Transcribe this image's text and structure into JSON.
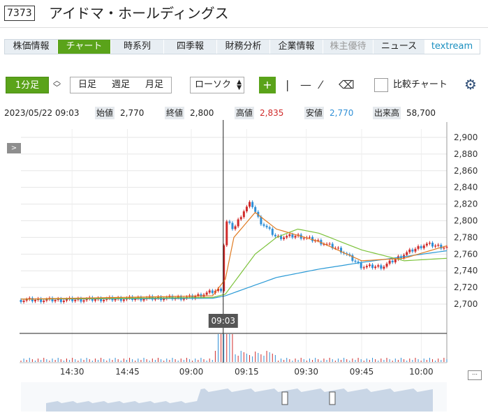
{
  "header": {
    "code": "7373",
    "company": "アイドマ・ホールディングス"
  },
  "tabs": [
    {
      "label": "株価情報",
      "state": "normal"
    },
    {
      "label": "チャート",
      "state": "active"
    },
    {
      "label": "時系列",
      "state": "normal"
    },
    {
      "label": "四季報",
      "state": "normal"
    },
    {
      "label": "財務分析",
      "state": "normal"
    },
    {
      "label": "企業情報",
      "state": "normal"
    },
    {
      "label": "株主優待",
      "state": "disabled"
    },
    {
      "label": "ニュース",
      "state": "normal"
    },
    {
      "label": "textream",
      "state": "ext"
    }
  ],
  "toolbar": {
    "interval": "1分足",
    "periods": [
      "日足",
      "週足",
      "月足"
    ],
    "chart_type": "ローソク",
    "compare_label": "比較チャート"
  },
  "info": {
    "datetime": "2023/05/22 09:03",
    "open_label": "始値",
    "open": "2,770",
    "close_label": "終値",
    "close": "2,800",
    "high_label": "高値",
    "high": "2,835",
    "low_label": "安値",
    "low": "2,770",
    "volume_label": "出来高",
    "volume": "58,700"
  },
  "colors": {
    "up": "#d02b2b",
    "down": "#2f8fd6",
    "ma_short": "#e07b22",
    "ma_mid": "#7cc23a",
    "ma_long": "#2b9ad6",
    "accent": "#5aa31a"
  },
  "chart_data": {
    "type": "line",
    "x_ticks": [
      "14:30",
      "14:45",
      "09:00",
      "09:15",
      "09:30",
      "09:45",
      "10:00"
    ],
    "crosshair_label": "09:03",
    "ylim": [
      2690,
      2910
    ],
    "y_ticks": [
      "2,900",
      "2,880",
      "2,860",
      "2,840",
      "2,820",
      "2,800",
      "2,780",
      "2,760",
      "2,740",
      "2,720",
      "2,700"
    ],
    "price_series": {
      "description": "approximate close values by position (0 = start of axis, 1 = end)",
      "t": [
        0.0,
        0.1,
        0.2,
        0.3,
        0.4,
        0.45,
        0.47,
        0.48,
        0.5,
        0.52,
        0.54,
        0.56,
        0.58,
        0.6,
        0.65,
        0.7,
        0.75,
        0.8,
        0.85,
        0.9,
        0.95,
        1.0
      ],
      "close": [
        2705,
        2705,
        2706,
        2707,
        2708,
        2715,
        2718,
        2800,
        2790,
        2810,
        2822,
        2800,
        2790,
        2780,
        2782,
        2775,
        2765,
        2745,
        2745,
        2760,
        2772,
        2768
      ]
    },
    "ma_short": {
      "t": [
        0,
        0.45,
        0.48,
        0.5,
        0.55,
        0.6,
        0.7,
        0.8,
        0.9,
        1.0
      ],
      "v": [
        2706,
        2710,
        2730,
        2780,
        2810,
        2790,
        2775,
        2752,
        2755,
        2770
      ]
    },
    "ma_mid": {
      "t": [
        0,
        0.45,
        0.48,
        0.55,
        0.6,
        0.65,
        0.7,
        0.8,
        0.9,
        1.0
      ],
      "v": [
        2706,
        2708,
        2712,
        2760,
        2780,
        2790,
        2785,
        2765,
        2752,
        2755
      ]
    },
    "ma_long": {
      "t": [
        0,
        0.45,
        0.48,
        0.6,
        0.7,
        0.8,
        0.9,
        1.0
      ],
      "v": [
        2706,
        2707,
        2710,
        2732,
        2742,
        2750,
        2757,
        2764
      ]
    }
  }
}
